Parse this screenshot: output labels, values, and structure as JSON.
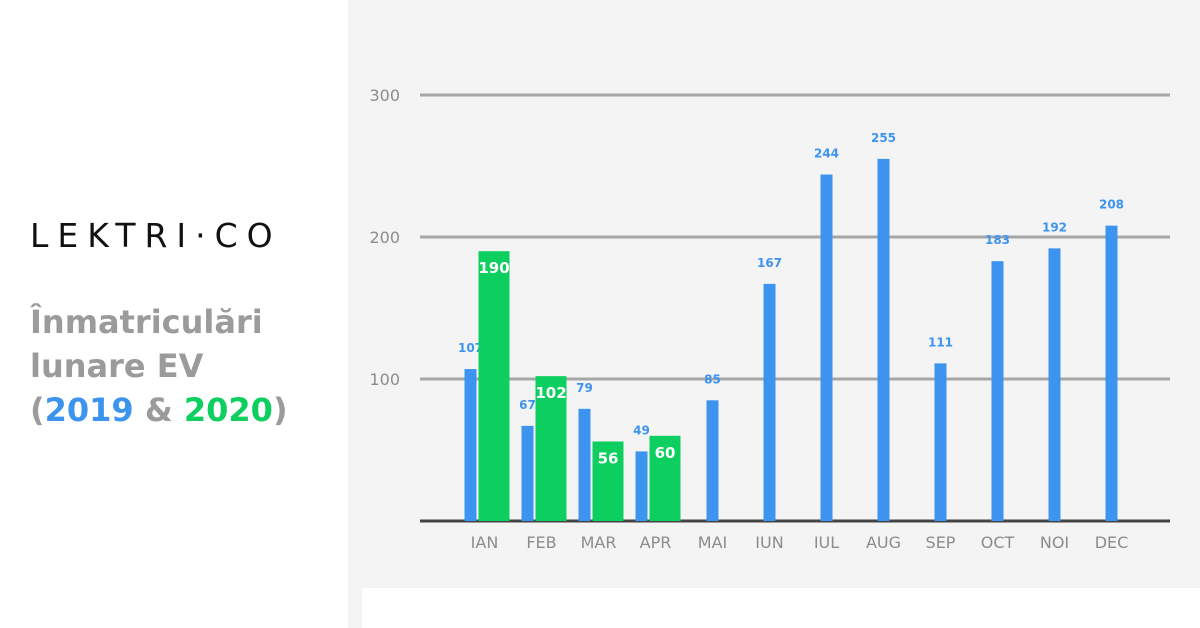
{
  "brand": {
    "logo_text": "LEKTRI·CO"
  },
  "title": {
    "line1": "Înmatriculări",
    "line2": "lunare EV",
    "open_paren": "(",
    "year_a": "2019",
    "amp": "&",
    "year_b": "2020",
    "close_paren": ")"
  },
  "colors": {
    "series_2019": "#3d94ef",
    "series_2020": "#0dcf5f",
    "gridline": "#a6a6a6",
    "axis": "#444444",
    "tick_label": "#8c8c8c"
  },
  "chart_data": {
    "type": "bar",
    "categories": [
      "IAN",
      "FEB",
      "MAR",
      "APR",
      "MAI",
      "IUN",
      "IUL",
      "AUG",
      "SEP",
      "OCT",
      "NOI",
      "DEC"
    ],
    "series": [
      {
        "name": "2019",
        "color": "#3d94ef",
        "values": [
          107,
          67,
          79,
          49,
          85,
          167,
          244,
          255,
          111,
          183,
          192,
          208
        ]
      },
      {
        "name": "2020",
        "color": "#0dcf5f",
        "values": [
          190,
          102,
          56,
          60,
          null,
          null,
          null,
          null,
          null,
          null,
          null,
          null
        ]
      }
    ],
    "y_ticks": [
      100,
      200,
      300
    ],
    "ylim": [
      0,
      300
    ],
    "grid": true,
    "data_labels": true,
    "title": "",
    "xlabel": "",
    "ylabel": ""
  }
}
